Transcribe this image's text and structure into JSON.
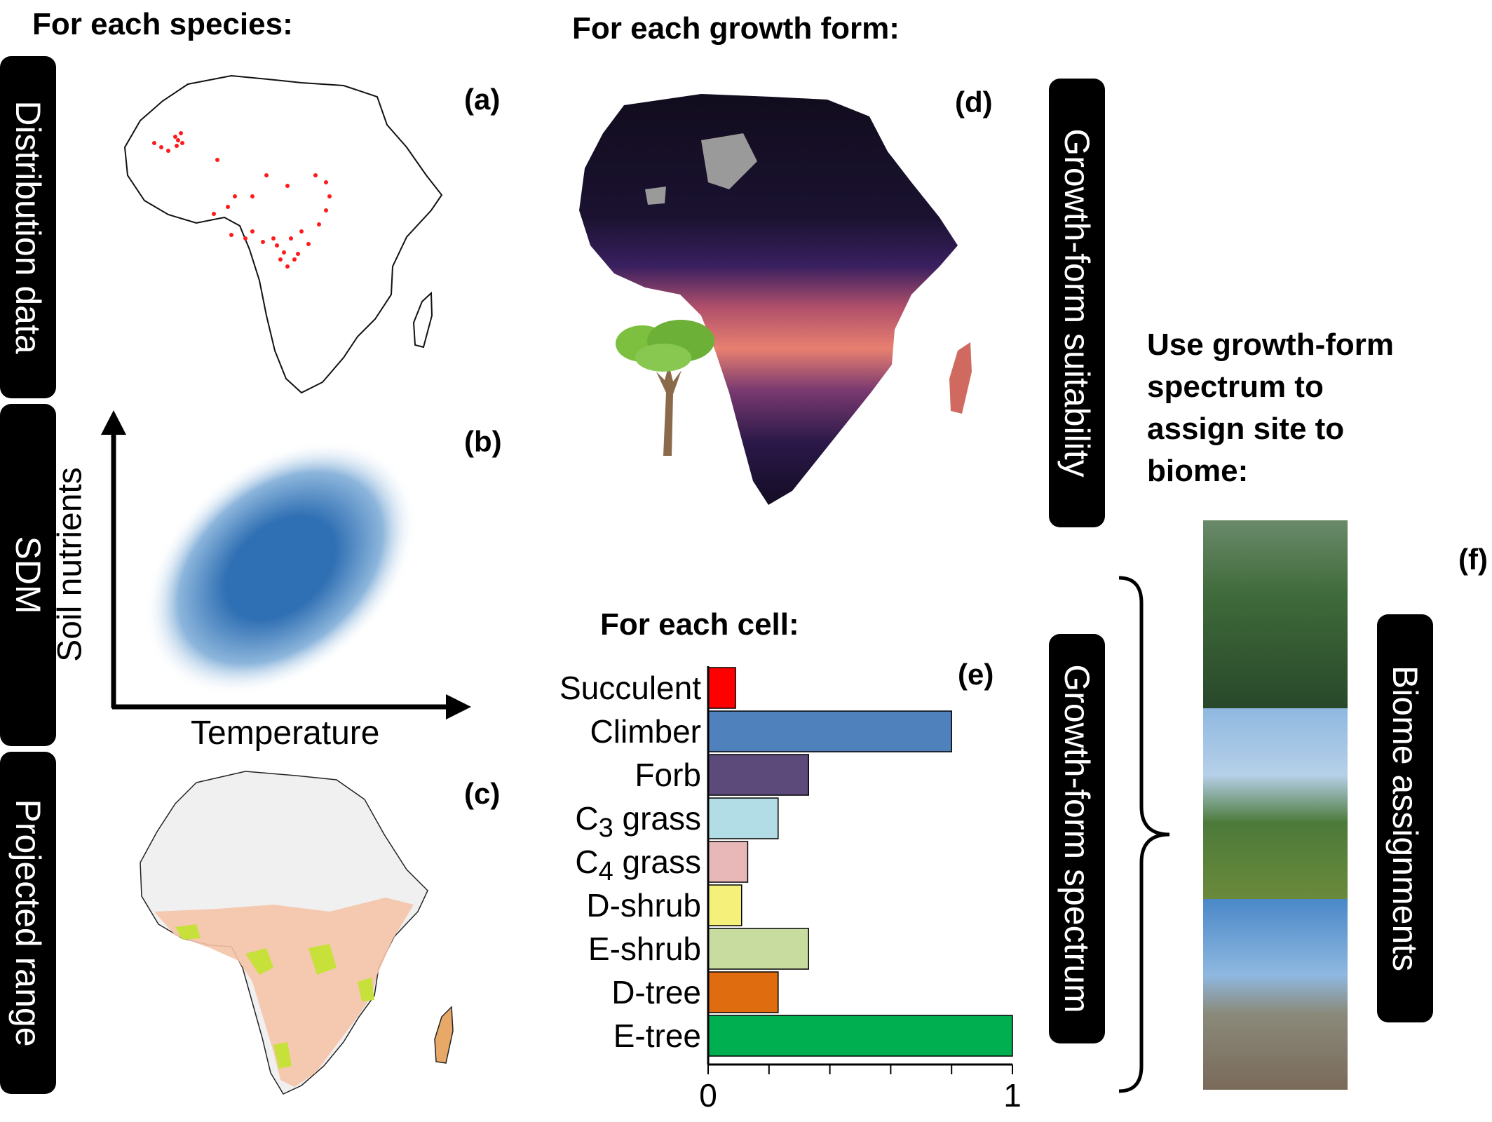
{
  "headings": {
    "species": "For each species:",
    "growth_form": "For each growth form:",
    "cell": "For each cell:",
    "biome": [
      "Use growth-form",
      "spectrum to",
      "assign site to",
      "biome:"
    ]
  },
  "panels": {
    "a": "(a)",
    "b": "(b)",
    "c": "(c)",
    "d": "(d)",
    "e": "(e)",
    "f": "(f)"
  },
  "side_labels": {
    "distribution": "Distribution data",
    "sdm": "SDM",
    "projected": "Projected range",
    "suitability": "Growth-form suitability",
    "spectrum": "Growth-form spectrum",
    "biome": "Biome assignments"
  },
  "sdm_axes": {
    "x": "Temperature",
    "y": "Soil nutrients"
  },
  "colors": {
    "occurrence": "#ff1a1a",
    "sdm_blob": "#2f6fb3",
    "suitability_dark": "#1a0f2e",
    "suitability_light": "#f0a070"
  },
  "chart_data": {
    "type": "bar",
    "orientation": "horizontal",
    "categories": [
      "Succulent",
      "Climber",
      "Forb",
      "C3 grass",
      "C4 grass",
      "D-shrub",
      "E-shrub",
      "D-tree",
      "E-tree"
    ],
    "category_labels": [
      {
        "text": "Succulent"
      },
      {
        "text": "Climber"
      },
      {
        "text": "Forb"
      },
      {
        "text": "C",
        "sub": "3",
        "rest": " grass"
      },
      {
        "text": "C",
        "sub": "4",
        "rest": " grass"
      },
      {
        "text": "D-shrub"
      },
      {
        "text": "E-shrub"
      },
      {
        "text": "D-tree"
      },
      {
        "text": "E-tree"
      }
    ],
    "values": [
      0.09,
      0.8,
      0.33,
      0.23,
      0.13,
      0.11,
      0.33,
      0.23,
      1.0
    ],
    "bar_colors": [
      "#ff0000",
      "#4f81bd",
      "#5c4a7a",
      "#b3dde6",
      "#e8b8b8",
      "#f5f07a",
      "#c8dca0",
      "#e06c10",
      "#00b050"
    ],
    "xlim": [
      0,
      1
    ],
    "x_tick_labels": [
      "0",
      "1"
    ],
    "x_minor_ticks": [
      0,
      0.2,
      0.4,
      0.6,
      0.8,
      1.0
    ]
  }
}
